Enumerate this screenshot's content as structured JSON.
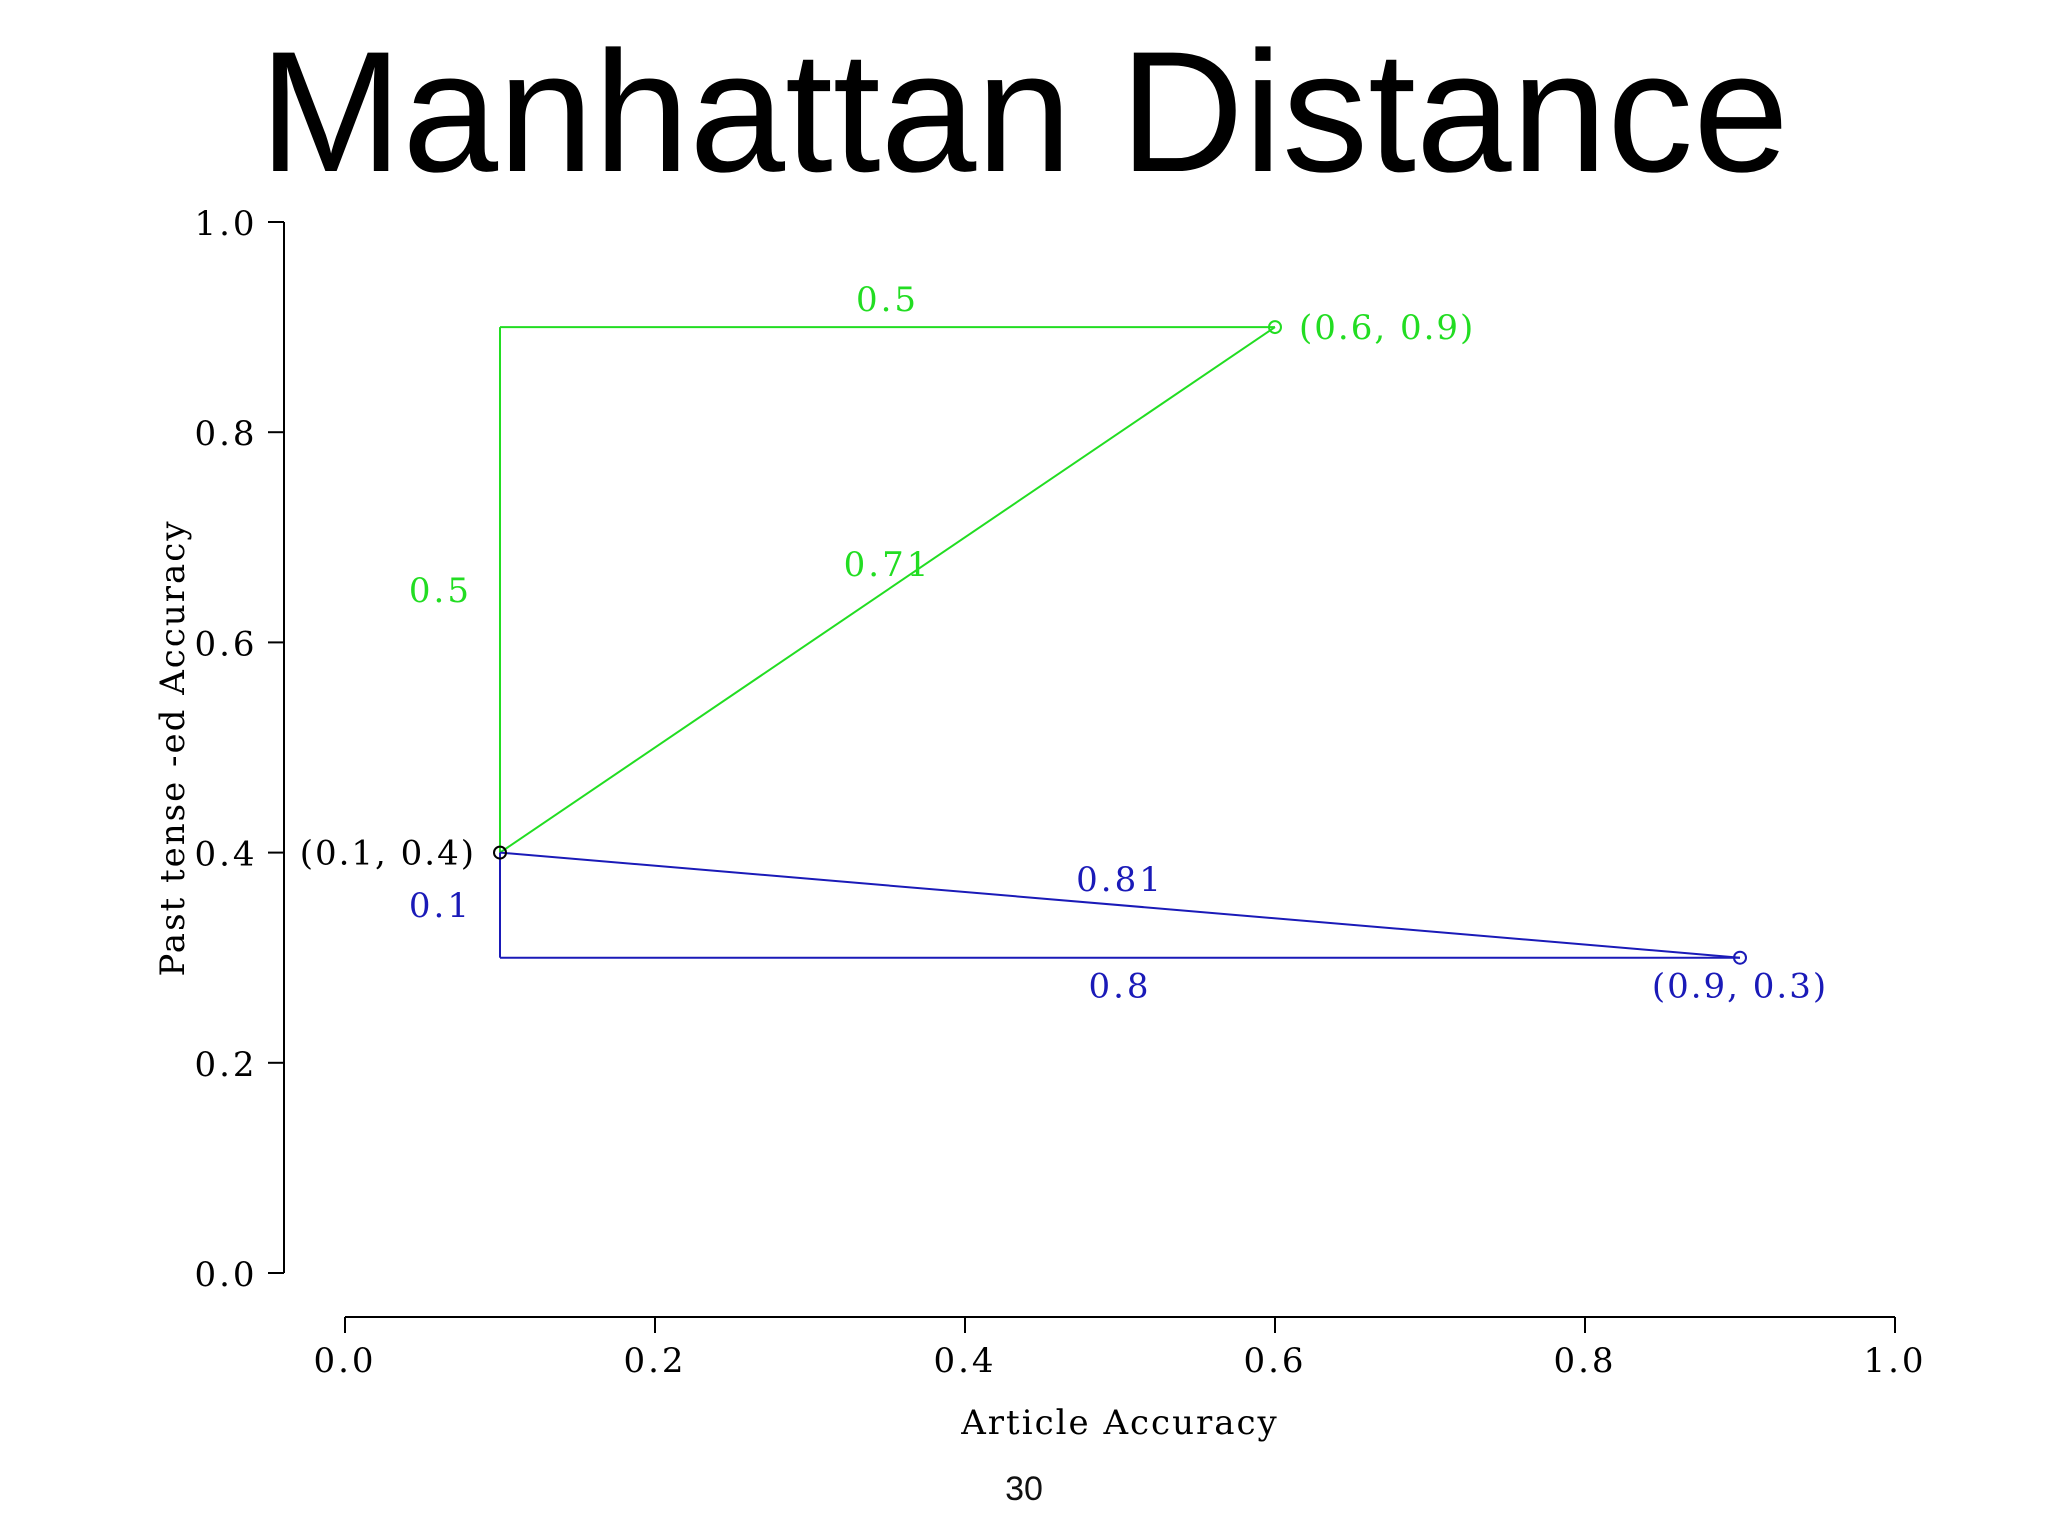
{
  "slide": {
    "title": "Manhattan Distance",
    "page_number": "30"
  },
  "chart_data": {
    "type": "line",
    "xlabel": "Article Accuracy",
    "ylabel": "Past tense -ed Accuracy",
    "xlim": [
      0,
      1
    ],
    "ylim": [
      0,
      1
    ],
    "x_ticks": [
      "0.0",
      "0.2",
      "0.4",
      "0.6",
      "0.8",
      "1.0"
    ],
    "y_ticks": [
      "0.0",
      "0.2",
      "0.4",
      "0.6",
      "0.8",
      "1.0"
    ],
    "grid": false,
    "colors": {
      "green": "#22dd22",
      "blue": "#1a1ab8",
      "black": "#000000"
    },
    "points": [
      {
        "x": 0.1,
        "y": 0.4,
        "label": "(0.1, 0.4)",
        "color": "#000000",
        "label_side": "left"
      },
      {
        "x": 0.6,
        "y": 0.9,
        "label": "(0.6, 0.9)",
        "color": "#22dd22",
        "label_side": "right"
      },
      {
        "x": 0.9,
        "y": 0.3,
        "label": "(0.9, 0.3)",
        "color": "#1a1ab8",
        "label_side": "below"
      }
    ],
    "segments": [
      {
        "x1": 0.1,
        "y1": 0.4,
        "x2": 0.1,
        "y2": 0.9,
        "color": "#22dd22",
        "label": "0.5"
      },
      {
        "x1": 0.1,
        "y1": 0.9,
        "x2": 0.6,
        "y2": 0.9,
        "color": "#22dd22",
        "label": "0.5"
      },
      {
        "x1": 0.1,
        "y1": 0.4,
        "x2": 0.6,
        "y2": 0.9,
        "color": "#22dd22",
        "label": "0.71"
      },
      {
        "x1": 0.1,
        "y1": 0.4,
        "x2": 0.1,
        "y2": 0.3,
        "color": "#1a1ab8",
        "label": "0.1"
      },
      {
        "x1": 0.1,
        "y1": 0.3,
        "x2": 0.9,
        "y2": 0.3,
        "color": "#1a1ab8",
        "label": "0.8"
      },
      {
        "x1": 0.1,
        "y1": 0.4,
        "x2": 0.9,
        "y2": 0.3,
        "color": "#1a1ab8",
        "label": "0.81"
      }
    ]
  }
}
